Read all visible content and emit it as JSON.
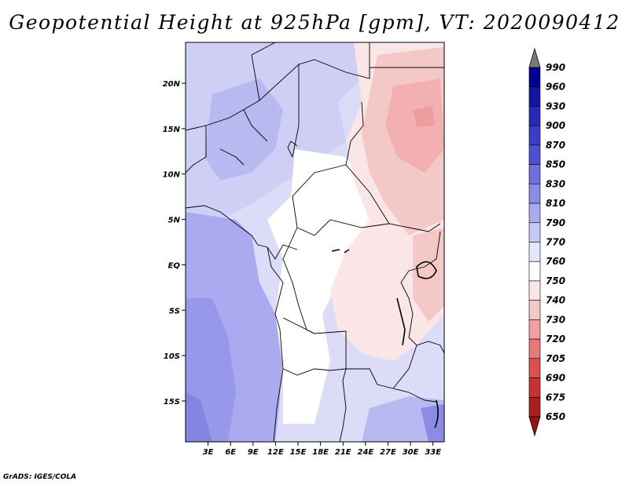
{
  "title": "Geopotential Height at 925hPa [gpm], VT: 2020090412",
  "credit": "GrADS: IGES/COLA",
  "map": {
    "variable": "Geopotential Height",
    "level": "925hPa",
    "units": "gpm",
    "valid_time": "2020090412",
    "lon_ticks": [
      "3E",
      "6E",
      "9E",
      "12E",
      "15E",
      "18E",
      "21E",
      "24E",
      "27E",
      "30E",
      "33E"
    ],
    "lat_ticks": [
      "20N",
      "15N",
      "10N",
      "5N",
      "EQ",
      "5S",
      "10S",
      "15S"
    ],
    "lon_range": [
      0,
      34.5
    ],
    "lat_range": [
      -19.5,
      24.5
    ]
  },
  "colorbar": {
    "labels": [
      "990",
      "960",
      "930",
      "900",
      "870",
      "850",
      "830",
      "810",
      "790",
      "770",
      "760",
      "750",
      "740",
      "730",
      "720",
      "705",
      "690",
      "675",
      "650"
    ],
    "colors": [
      "#7a7a7a",
      "#000096",
      "#1414a0",
      "#2828b4",
      "#3c3cc8",
      "#5050d2",
      "#6e6edc",
      "#8c8ce6",
      "#aaaaf0",
      "#c8c8f5",
      "#e6e6fa",
      "#ffffff",
      "#fae6e6",
      "#f5c8c8",
      "#f0a0a0",
      "#e67878",
      "#dc5050",
      "#c83232",
      "#aa1e1e",
      "#961414"
    ]
  },
  "colors": {
    "ocean_blue": "#aaaaf0",
    "deep_blue": "#8c8ce6",
    "land_light": "#dcdcf8",
    "neutral": "#ffffff",
    "pink_light": "#fae6e6",
    "pink_mid": "#f5c8c8",
    "pink_dark": "#f0a0a0",
    "border": "#000000"
  }
}
